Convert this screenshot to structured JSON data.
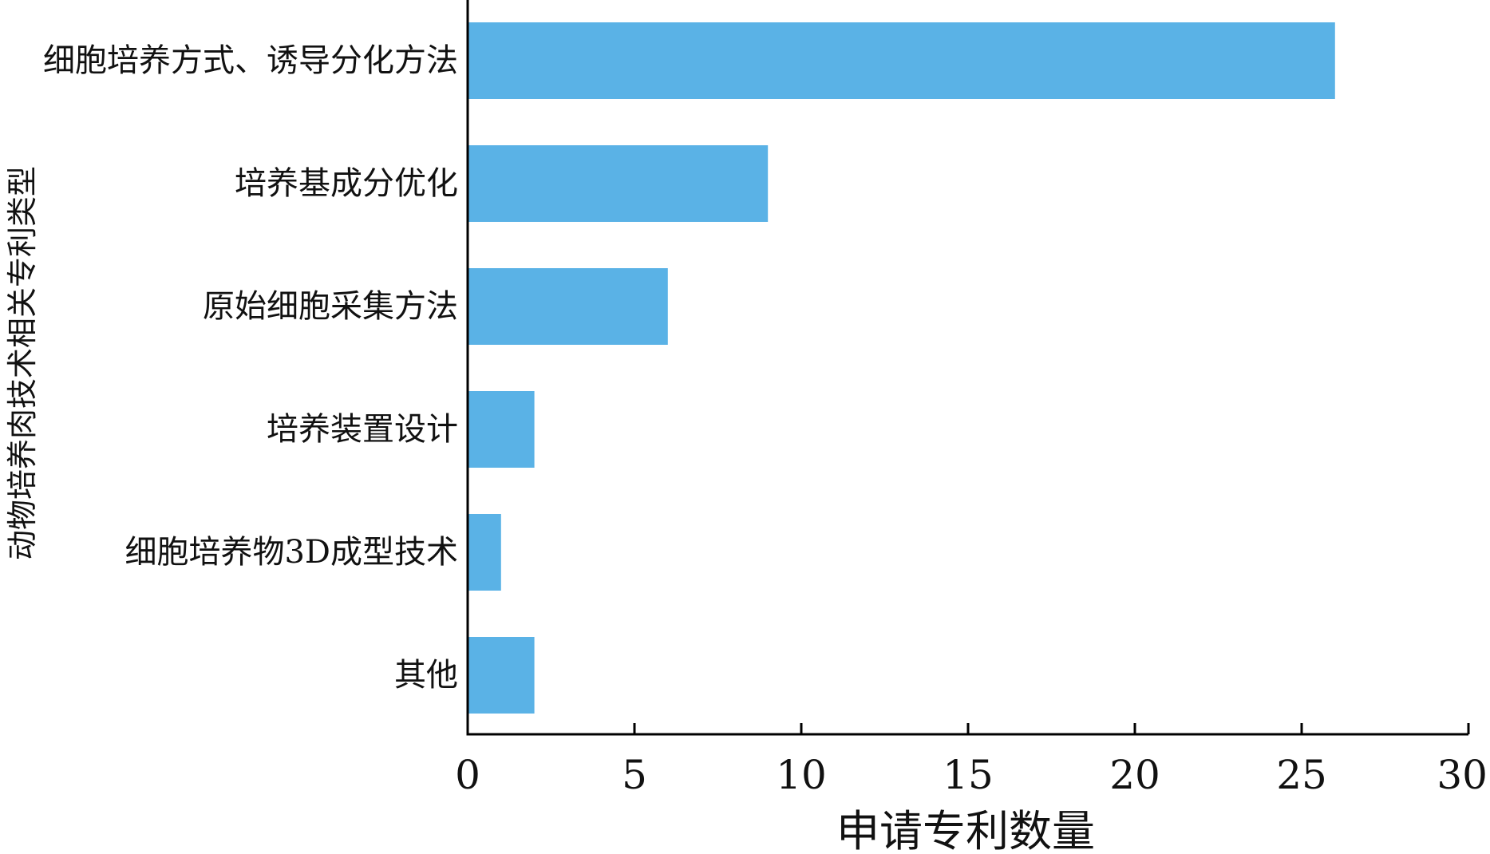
{
  "chart_data": {
    "type": "bar",
    "orientation": "horizontal",
    "categories": [
      "细胞培养方式、诱导分化方法",
      "培养基成分优化",
      "原始细胞采集方法",
      "培养装置设计",
      "细胞培养物3D成型技术",
      "其他"
    ],
    "values": [
      26,
      9,
      6,
      2,
      1,
      2
    ],
    "xlabel": "申请专利数量",
    "ylabel": "动物培养肉技术相关专利类型",
    "xlim": [
      0,
      30
    ],
    "xticks": [
      "0",
      "5",
      "10",
      "15",
      "20",
      "25",
      "30"
    ],
    "grid": false,
    "bar_color": "#5ab2e6"
  }
}
